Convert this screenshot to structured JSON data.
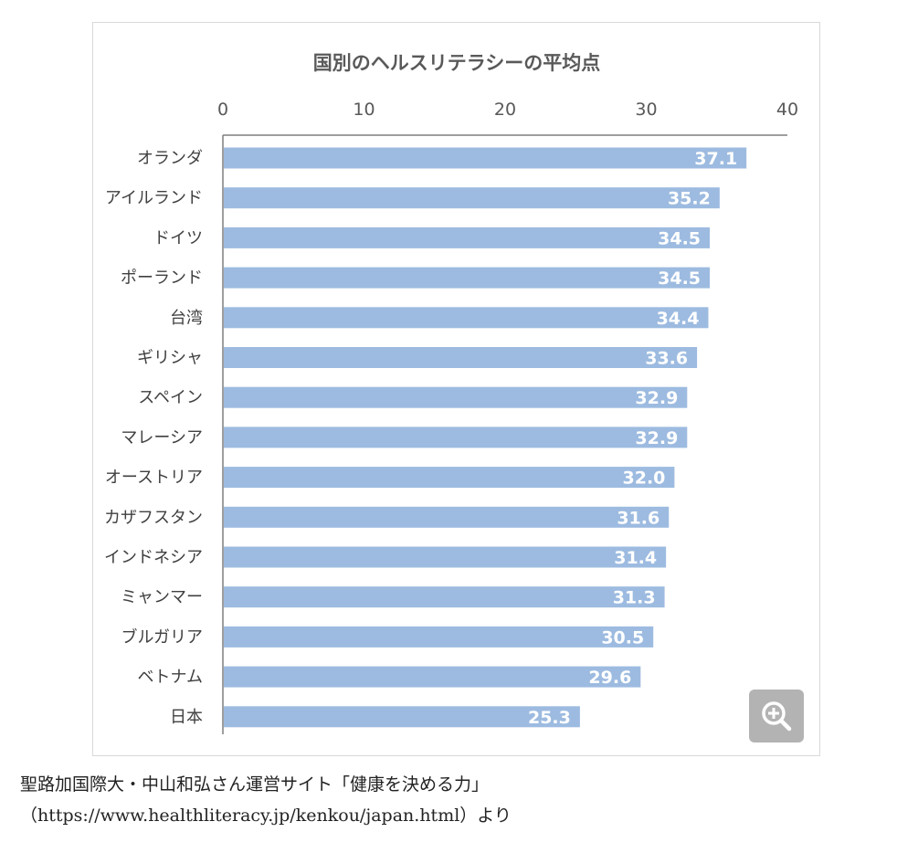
{
  "chart_data": {
    "type": "bar",
    "orientation": "horizontal",
    "title": "国別のヘルスリテラシーの平均点",
    "categories": [
      "オランダ",
      "アイルランド",
      "ドイツ",
      "ポーランド",
      "台湾",
      "ギリシャ",
      "スペイン",
      "マレーシア",
      "オーストリア",
      "カザフスタン",
      "インドネシア",
      "ミャンマー",
      "ブルガリア",
      "ベトナム",
      "日本"
    ],
    "values": [
      37.1,
      35.2,
      34.5,
      34.5,
      34.4,
      33.6,
      32.9,
      32.9,
      32.0,
      31.6,
      31.4,
      31.3,
      30.5,
      29.6,
      25.3
    ],
    "value_labels": [
      "37.1",
      "35.2",
      "34.5",
      "34.5",
      "34.4",
      "33.6",
      "32.9",
      "32.9",
      "32.0",
      "31.6",
      "31.4",
      "31.3",
      "30.5",
      "29.6",
      "25.3"
    ],
    "xticks": [
      "0",
      "10",
      "20",
      "30",
      "40"
    ],
    "xlim": [
      0,
      40
    ],
    "x_axis_position": "top",
    "grid": false,
    "legend": "none",
    "bar_color": "#9dbbe0",
    "label_color": "#ffffff"
  },
  "zoom": {
    "icon": "zoom-in-icon",
    "background": "#b3b3b3"
  },
  "caption": {
    "line1": "聖路加国際大・中山和弘さん運営サイト「健康を決める力」",
    "line2": "（https://www.healthliteracy.jp/kenkou/japan.html）より"
  }
}
